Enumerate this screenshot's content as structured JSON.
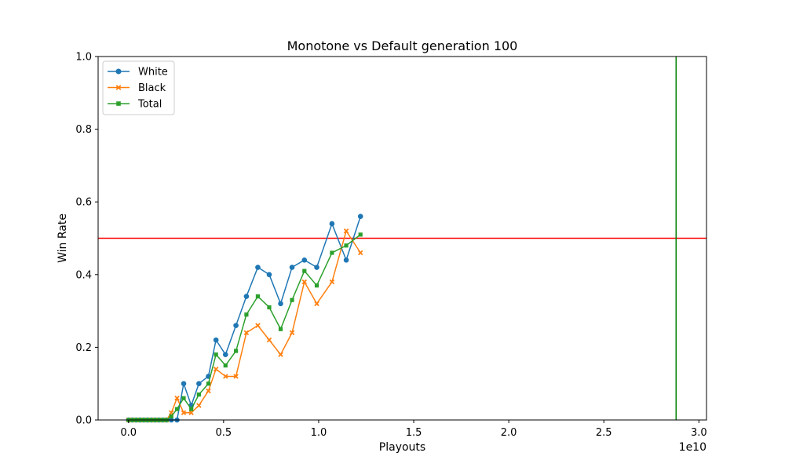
{
  "chart_data": {
    "type": "line",
    "title": "Monotone vs Default generation 100",
    "xlabel": "Playouts",
    "ylabel": "Win Rate",
    "x_offset_label": "1e10",
    "xlim": [
      -0.16,
      3.04
    ],
    "ylim": [
      0,
      1
    ],
    "x_scale_note": "x values in units of 1e10 playouts",
    "x_ticks": [
      0.0,
      0.5,
      1.0,
      1.5,
      2.0,
      2.5,
      3.0
    ],
    "x_tick_labels": [
      "0.0",
      "0.5",
      "1.0",
      "1.5",
      "2.0",
      "2.5",
      "3.0"
    ],
    "y_ticks": [
      0.0,
      0.2,
      0.4,
      0.6,
      0.8,
      1.0
    ],
    "y_tick_labels": [
      "0.0",
      "0.2",
      "0.4",
      "0.6",
      "0.8",
      "1.0"
    ],
    "legend_position": "top-left",
    "x": [
      0.0,
      0.02,
      0.04,
      0.06,
      0.08,
      0.1,
      0.12,
      0.14,
      0.16,
      0.18,
      0.2,
      0.225,
      0.255,
      0.29,
      0.33,
      0.37,
      0.42,
      0.46,
      0.51,
      0.565,
      0.62,
      0.68,
      0.74,
      0.8,
      0.86,
      0.925,
      0.99,
      1.07,
      1.145,
      1.22
    ],
    "series": [
      {
        "name": "White",
        "color": "#1f77b4",
        "marker": "circle",
        "values": [
          0.0,
          0.0,
          0.0,
          0.0,
          0.0,
          0.0,
          0.0,
          0.0,
          0.0,
          0.0,
          0.0,
          0.0,
          0.0,
          0.1,
          0.04,
          0.1,
          0.12,
          0.22,
          0.18,
          0.26,
          0.34,
          0.42,
          0.4,
          0.32,
          0.42,
          0.44,
          0.42,
          0.54,
          0.44,
          0.56
        ]
      },
      {
        "name": "Black",
        "color": "#ff7f0e",
        "marker": "x",
        "values": [
          0.0,
          0.0,
          0.0,
          0.0,
          0.0,
          0.0,
          0.0,
          0.0,
          0.0,
          0.0,
          0.0,
          0.02,
          0.06,
          0.02,
          0.02,
          0.04,
          0.08,
          0.14,
          0.12,
          0.12,
          0.24,
          0.26,
          0.22,
          0.18,
          0.24,
          0.38,
          0.32,
          0.38,
          0.52,
          0.46
        ]
      },
      {
        "name": "Total",
        "color": "#2ca02c",
        "marker": "square",
        "values": [
          0.0,
          0.0,
          0.0,
          0.0,
          0.0,
          0.0,
          0.0,
          0.0,
          0.0,
          0.0,
          0.0,
          0.01,
          0.03,
          0.06,
          0.03,
          0.07,
          0.1,
          0.18,
          0.15,
          0.19,
          0.29,
          0.34,
          0.31,
          0.25,
          0.33,
          0.41,
          0.37,
          0.46,
          0.48,
          0.51
        ]
      }
    ],
    "reference_lines": [
      {
        "orientation": "horizontal",
        "value": 0.5,
        "color": "#ff0000"
      },
      {
        "orientation": "vertical",
        "value": 2.88,
        "color": "#008000"
      }
    ],
    "grid": false
  }
}
